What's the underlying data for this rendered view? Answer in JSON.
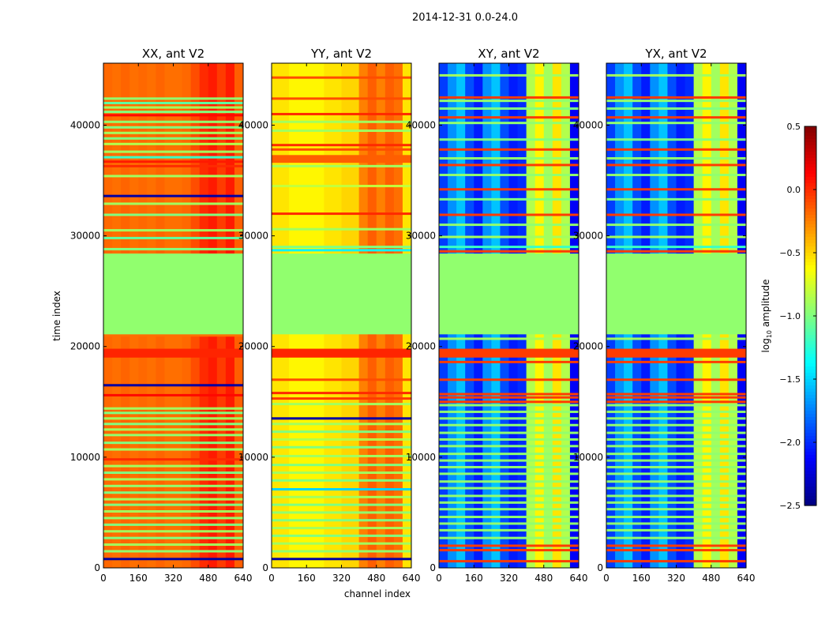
{
  "chart_data": {
    "type": "heatmap",
    "title": "2014-12-31 0.0-24.0",
    "xlabel": "channel index",
    "ylabel": "time index",
    "xlim": [
      0,
      640
    ],
    "ylim": [
      0,
      45600
    ],
    "xticks": [
      "0",
      "160",
      "320",
      "480",
      "640"
    ],
    "yticks": [
      "0",
      "10000",
      "20000",
      "30000",
      "40000"
    ],
    "colorbar": {
      "label_prefix": "log",
      "label_sub": "10",
      "label_suffix": " amplitude",
      "colormap": "jet",
      "range": [
        -2.5,
        0.5
      ],
      "ticks": [
        "0.5",
        "0.0",
        "−0.5",
        "−1.0",
        "−1.5",
        "−2.0",
        "−2.5"
      ]
    },
    "panels": [
      {
        "title": "XX, ant V2",
        "base": -0.2,
        "channel_profile": [
          0.02,
          0.0,
          0.03,
          0.0,
          0.02,
          0.0,
          0.03,
          0.0,
          0.0,
          0.02,
          0.1,
          0.2,
          0.25,
          0.15,
          0.25,
          0.05
        ],
        "segments": [
          [
            28400,
            21100,
            -0.95
          ],
          [
            19800,
            19000,
            0.02
          ]
        ],
        "lines": [
          [
            42400,
            -0.95
          ],
          [
            42000,
            -1.1
          ],
          [
            41600,
            -0.9
          ],
          [
            41200,
            -1.0
          ],
          [
            40900,
            0.1
          ],
          [
            40300,
            -0.95
          ],
          [
            39800,
            -1.0
          ],
          [
            39300,
            -0.9
          ],
          [
            38800,
            -1.0
          ],
          [
            38300,
            -0.85
          ],
          [
            37600,
            -0.9
          ],
          [
            37100,
            -1.2
          ],
          [
            36700,
            0.05
          ],
          [
            36300,
            0.0
          ],
          [
            35400,
            -0.9
          ],
          [
            33600,
            -2.4
          ],
          [
            32900,
            -0.9
          ],
          [
            31900,
            -1.0
          ],
          [
            30500,
            -0.9
          ],
          [
            29800,
            -1.1
          ],
          [
            28800,
            -1.0
          ],
          [
            21000,
            -0.2
          ],
          [
            16500,
            -2.4
          ],
          [
            15600,
            0.1
          ],
          [
            14400,
            -0.9
          ],
          [
            14000,
            -1.0
          ],
          [
            13500,
            -0.9
          ],
          [
            13000,
            -1.0
          ],
          [
            12500,
            -0.9
          ],
          [
            12000,
            -0.95
          ],
          [
            11300,
            -1.0
          ],
          [
            10700,
            -0.9
          ],
          [
            9800,
            0.0
          ],
          [
            9200,
            -0.9
          ],
          [
            8600,
            -1.0
          ],
          [
            8000,
            -0.9
          ],
          [
            7400,
            -0.95
          ],
          [
            6800,
            -1.0
          ],
          [
            6200,
            -0.9
          ],
          [
            5700,
            -1.0
          ],
          [
            5100,
            -0.9
          ],
          [
            4500,
            -0.95
          ],
          [
            3900,
            -1.0
          ],
          [
            3300,
            -0.9
          ],
          [
            2700,
            -1.0
          ],
          [
            2100,
            -0.9
          ],
          [
            1500,
            -0.95
          ],
          [
            800,
            -2.4
          ]
        ]
      },
      {
        "title": "YY, ant V2",
        "base": -0.6,
        "channel_profile": [
          0.05,
          0.05,
          0.0,
          0.0,
          0.0,
          0.0,
          0.05,
          0.05,
          0.1,
          0.1,
          0.35,
          0.45,
          0.35,
          0.45,
          0.4,
          0.05
        ],
        "segments": [
          [
            28400,
            21100,
            -0.95
          ],
          [
            19800,
            19000,
            0.02
          ],
          [
            37300,
            36600,
            -0.15
          ]
        ],
        "lines": [
          [
            44300,
            -0.1
          ],
          [
            42400,
            -0.1
          ],
          [
            41000,
            0.0
          ],
          [
            40300,
            -0.9
          ],
          [
            39500,
            -0.9
          ],
          [
            38200,
            0.0
          ],
          [
            37800,
            -0.1
          ],
          [
            36300,
            -0.9
          ],
          [
            34500,
            -0.8
          ],
          [
            32000,
            0.0
          ],
          [
            30600,
            -0.9
          ],
          [
            29000,
            -1.0
          ],
          [
            28700,
            -1.4
          ],
          [
            17000,
            -0.1
          ],
          [
            15800,
            0.0
          ],
          [
            15300,
            -0.05
          ],
          [
            14800,
            -0.9
          ],
          [
            13500,
            -2.4
          ],
          [
            13000,
            -0.9
          ],
          [
            12300,
            -1.0
          ],
          [
            11600,
            -0.85
          ],
          [
            10900,
            -1.0
          ],
          [
            10100,
            -0.9
          ],
          [
            9300,
            -1.0
          ],
          [
            8600,
            -0.9
          ],
          [
            7900,
            -1.0
          ],
          [
            7100,
            -1.5
          ],
          [
            6400,
            -0.9
          ],
          [
            5700,
            -1.0
          ],
          [
            5000,
            -0.95
          ],
          [
            4300,
            -1.0
          ],
          [
            3600,
            -0.9
          ],
          [
            2900,
            -1.0
          ],
          [
            2200,
            -0.9
          ],
          [
            1500,
            -0.95
          ],
          [
            800,
            -2.4
          ]
        ]
      },
      {
        "title": "XY, ant V2",
        "base": -2.05,
        "channel_profile": [
          0.1,
          0.35,
          0.5,
          0.15,
          0.0,
          0.35,
          0.5,
          0.15,
          0.0,
          0.05,
          1.2,
          1.45,
          1.15,
          1.5,
          1.2,
          -0.1
        ],
        "segments": [
          [
            28400,
            21100,
            -0.95
          ],
          [
            19800,
            19000,
            -0.05
          ]
        ],
        "lines": [
          [
            44500,
            -0.9
          ],
          [
            42500,
            -0.05
          ],
          [
            42200,
            -0.95
          ],
          [
            41500,
            -1.0
          ],
          [
            40700,
            -0.05
          ],
          [
            40200,
            -0.95
          ],
          [
            38700,
            -1.0
          ],
          [
            37800,
            -0.05
          ],
          [
            37000,
            -0.95
          ],
          [
            36400,
            -0.05
          ],
          [
            35500,
            -0.95
          ],
          [
            34200,
            -0.05
          ],
          [
            33300,
            -1.0
          ],
          [
            31900,
            -0.05
          ],
          [
            31000,
            -0.95
          ],
          [
            29900,
            -0.9
          ],
          [
            29000,
            -1.2
          ],
          [
            28600,
            -0.05
          ],
          [
            20700,
            -0.9
          ],
          [
            18600,
            -0.05
          ],
          [
            17000,
            -0.05
          ],
          [
            15700,
            -0.05
          ],
          [
            15400,
            -0.05
          ],
          [
            15000,
            -0.05
          ],
          [
            14700,
            -0.95
          ],
          [
            14100,
            -0.95
          ],
          [
            13500,
            -0.95
          ],
          [
            12900,
            -0.95
          ],
          [
            12200,
            -0.95
          ],
          [
            11600,
            -0.95
          ],
          [
            11000,
            -0.95
          ],
          [
            10300,
            -0.95
          ],
          [
            9700,
            -0.95
          ],
          [
            9100,
            -0.95
          ],
          [
            8500,
            -0.95
          ],
          [
            7800,
            -0.95
          ],
          [
            7200,
            -0.95
          ],
          [
            6500,
            -0.95
          ],
          [
            5900,
            -0.95
          ],
          [
            5300,
            -0.95
          ],
          [
            4600,
            -0.95
          ],
          [
            4000,
            -0.95
          ],
          [
            3400,
            -0.95
          ],
          [
            2700,
            -0.95
          ],
          [
            2000,
            -0.05
          ],
          [
            1600,
            -0.05
          ],
          [
            600,
            -0.05
          ]
        ]
      },
      {
        "title": "YX, ant V2",
        "base": -2.05,
        "channel_profile": [
          0.1,
          0.35,
          0.5,
          0.15,
          0.0,
          0.35,
          0.5,
          0.15,
          0.0,
          0.05,
          1.2,
          1.45,
          1.15,
          1.5,
          1.2,
          -0.1
        ],
        "segments": [
          [
            28400,
            21100,
            -0.95
          ],
          [
            19800,
            19000,
            -0.05
          ]
        ],
        "lines": [
          [
            44500,
            -0.9
          ],
          [
            42500,
            -0.05
          ],
          [
            42200,
            -0.95
          ],
          [
            41500,
            -1.0
          ],
          [
            40700,
            -0.05
          ],
          [
            40200,
            -0.95
          ],
          [
            38700,
            -1.0
          ],
          [
            37800,
            -0.05
          ],
          [
            37000,
            -0.95
          ],
          [
            36400,
            -0.05
          ],
          [
            35500,
            -0.95
          ],
          [
            34200,
            -0.05
          ],
          [
            33300,
            -1.0
          ],
          [
            31900,
            -0.05
          ],
          [
            31000,
            -0.95
          ],
          [
            29900,
            -0.9
          ],
          [
            29000,
            -1.2
          ],
          [
            28600,
            -0.05
          ],
          [
            20700,
            -0.9
          ],
          [
            18600,
            -0.05
          ],
          [
            17000,
            -0.05
          ],
          [
            15700,
            -0.05
          ],
          [
            15400,
            -0.05
          ],
          [
            15000,
            -0.05
          ],
          [
            14700,
            -0.95
          ],
          [
            14100,
            -0.95
          ],
          [
            13500,
            -0.95
          ],
          [
            12900,
            -0.95
          ],
          [
            12200,
            -0.95
          ],
          [
            11600,
            -0.95
          ],
          [
            11000,
            -0.95
          ],
          [
            10300,
            -0.95
          ],
          [
            9700,
            -0.95
          ],
          [
            9100,
            -0.95
          ],
          [
            8500,
            -0.95
          ],
          [
            7800,
            -0.95
          ],
          [
            7200,
            -0.95
          ],
          [
            6500,
            -0.95
          ],
          [
            5900,
            -0.95
          ],
          [
            5300,
            -0.95
          ],
          [
            4600,
            -0.95
          ],
          [
            4000,
            -0.95
          ],
          [
            3400,
            -0.95
          ],
          [
            2700,
            -0.95
          ],
          [
            2000,
            -0.05
          ],
          [
            1600,
            -0.05
          ],
          [
            600,
            -0.05
          ]
        ]
      }
    ]
  }
}
